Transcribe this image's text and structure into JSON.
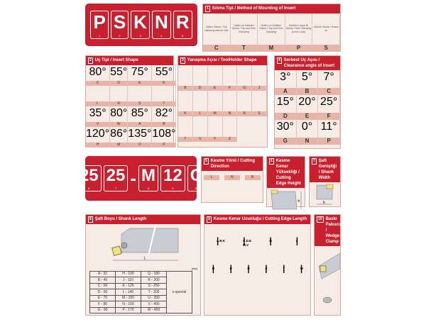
{
  "top_code": {
    "letters": [
      "P",
      "S",
      "K",
      "N",
      "R"
    ],
    "indices": [
      "1",
      "2",
      "3",
      "4",
      "5"
    ]
  },
  "mounting": {
    "num": "1",
    "title": "Sıkma Tipi / Method of Mounting of Insert",
    "items": [
      {
        "code": "C",
        "desc": "Üstten Sıkma / Top clamping without hole"
      },
      {
        "code": "T",
        "desc": "Üstten ve Delikten Sıkma / Top and Hole Clamping"
      },
      {
        "code": "M",
        "desc": "Üstten ve Delikten Sıkma / Top and Hole Clamping"
      },
      {
        "code": "P",
        "desc": "Delikten Levye ile Sıkma / Hole Clamping (Lever Lock)"
      },
      {
        "code": "S",
        "desc": "Vida ile Sıkma / Screw on"
      }
    ]
  },
  "insert_shape": {
    "num": "2",
    "title": "Uç Tipi / Insert Shape",
    "items": [
      {
        "code": "C",
        "angle": "80°",
        "shape": "rhombus"
      },
      {
        "code": "D",
        "angle": "55°",
        "shape": "rhombus"
      },
      {
        "code": "E",
        "angle": "75°",
        "shape": "rhombus"
      },
      {
        "code": "K",
        "angle": "55°",
        "shape": "parallelogram"
      },
      {
        "code": "L",
        "angle": "",
        "shape": "rectangle"
      },
      {
        "code": "R",
        "angle": "",
        "shape": "circle"
      },
      {
        "code": "S",
        "angle": "",
        "shape": "square"
      },
      {
        "code": "T",
        "angle": "",
        "shape": "triangle"
      },
      {
        "code": "V",
        "angle": "35°",
        "shape": "rhombus"
      },
      {
        "code": "W",
        "angle": "80°",
        "shape": "trigon"
      },
      {
        "code": "A",
        "angle": "85°",
        "shape": "parallelogram"
      },
      {
        "code": "B",
        "angle": "82°",
        "shape": "parallelogram"
      },
      {
        "code": "H",
        "angle": "120°",
        "shape": "hexagon"
      },
      {
        "code": "M",
        "angle": "86°",
        "shape": "rhombus"
      },
      {
        "code": "O",
        "angle": "135°",
        "shape": "octagon"
      },
      {
        "code": "P",
        "angle": "108°",
        "shape": "pentagon"
      }
    ]
  },
  "toolholder_shape": {
    "num": "3",
    "title": "Yanaşma Açısı / ToolHolder Shape",
    "items": [
      "B",
      "D",
      "E",
      "F",
      "G",
      "J",
      "K",
      "L",
      "M",
      "N",
      "R",
      "S",
      "T",
      "V",
      "Y",
      "Z"
    ]
  },
  "clearance": {
    "num": "4",
    "title": "Serbest Uç Açısı / Clearance angle of Insert",
    "items": [
      {
        "code": "A",
        "angle": "3°"
      },
      {
        "code": "B",
        "angle": "5°"
      },
      {
        "code": "C",
        "angle": "7°"
      },
      {
        "code": "D",
        "angle": "15°"
      },
      {
        "code": "E",
        "angle": "20°"
      },
      {
        "code": "F",
        "angle": "25°"
      },
      {
        "code": "G",
        "angle": "30°"
      },
      {
        "code": "N",
        "angle": "0°"
      },
      {
        "code": "P",
        "angle": "11°"
      }
    ]
  },
  "bottom_code": {
    "parts": [
      "25",
      "25",
      "M",
      "12",
      "C"
    ],
    "indices": [
      "6",
      "7",
      "8",
      "9",
      "10"
    ],
    "dash": "-"
  },
  "cutting_direction": {
    "num": "5",
    "title": "Kesme Yönü / Cutting Direction",
    "items": [
      "L",
      "N",
      "R"
    ]
  },
  "edge_height": {
    "num": "6",
    "title": "Kesme Kenar Yüksekliği / Cutting Edge Height",
    "dim": "h"
  },
  "shank_width": {
    "num": "7",
    "title": "Şaft Genişliği / Shank Width",
    "dim": "b"
  },
  "shank_length": {
    "num": "8",
    "title": "Şaft Boyu / Shank Length",
    "dim": "L",
    "unit": "(mm)",
    "special": "x-special",
    "columns": [
      [
        "A - 32",
        "B - 40",
        "C - 50",
        "D - 60",
        "E - 70",
        "F - 80",
        "G - 90"
      ],
      [
        "H - 100",
        "J - 110",
        "K - 125",
        "L - 140",
        "M - 150",
        "N - 160",
        "P - 170"
      ],
      [
        "Q - 180",
        "R - 200",
        "S - 250",
        "T - 300",
        "U - 350",
        "V - 400",
        "W - 450"
      ]
    ]
  },
  "edge_length": {
    "num": "9",
    "title": "Kesme Kenar Uzunluğu / Cutting Edge Length",
    "dim": "l",
    "row1": [
      "A.B.K",
      "C.D.E M.V",
      "H",
      "L"
    ],
    "row2": [
      "O",
      "P",
      "R",
      "S",
      "T",
      "W"
    ]
  },
  "wedge_clamp": {
    "num": "10",
    "title": "Baskı Pabucu / Wedge Clamp"
  },
  "colors": {
    "red": "#c8202e",
    "panel": "#f7ebe6",
    "label": "#e8b4a8",
    "insert": "#f3e27a",
    "body": "#c9ccd2"
  }
}
